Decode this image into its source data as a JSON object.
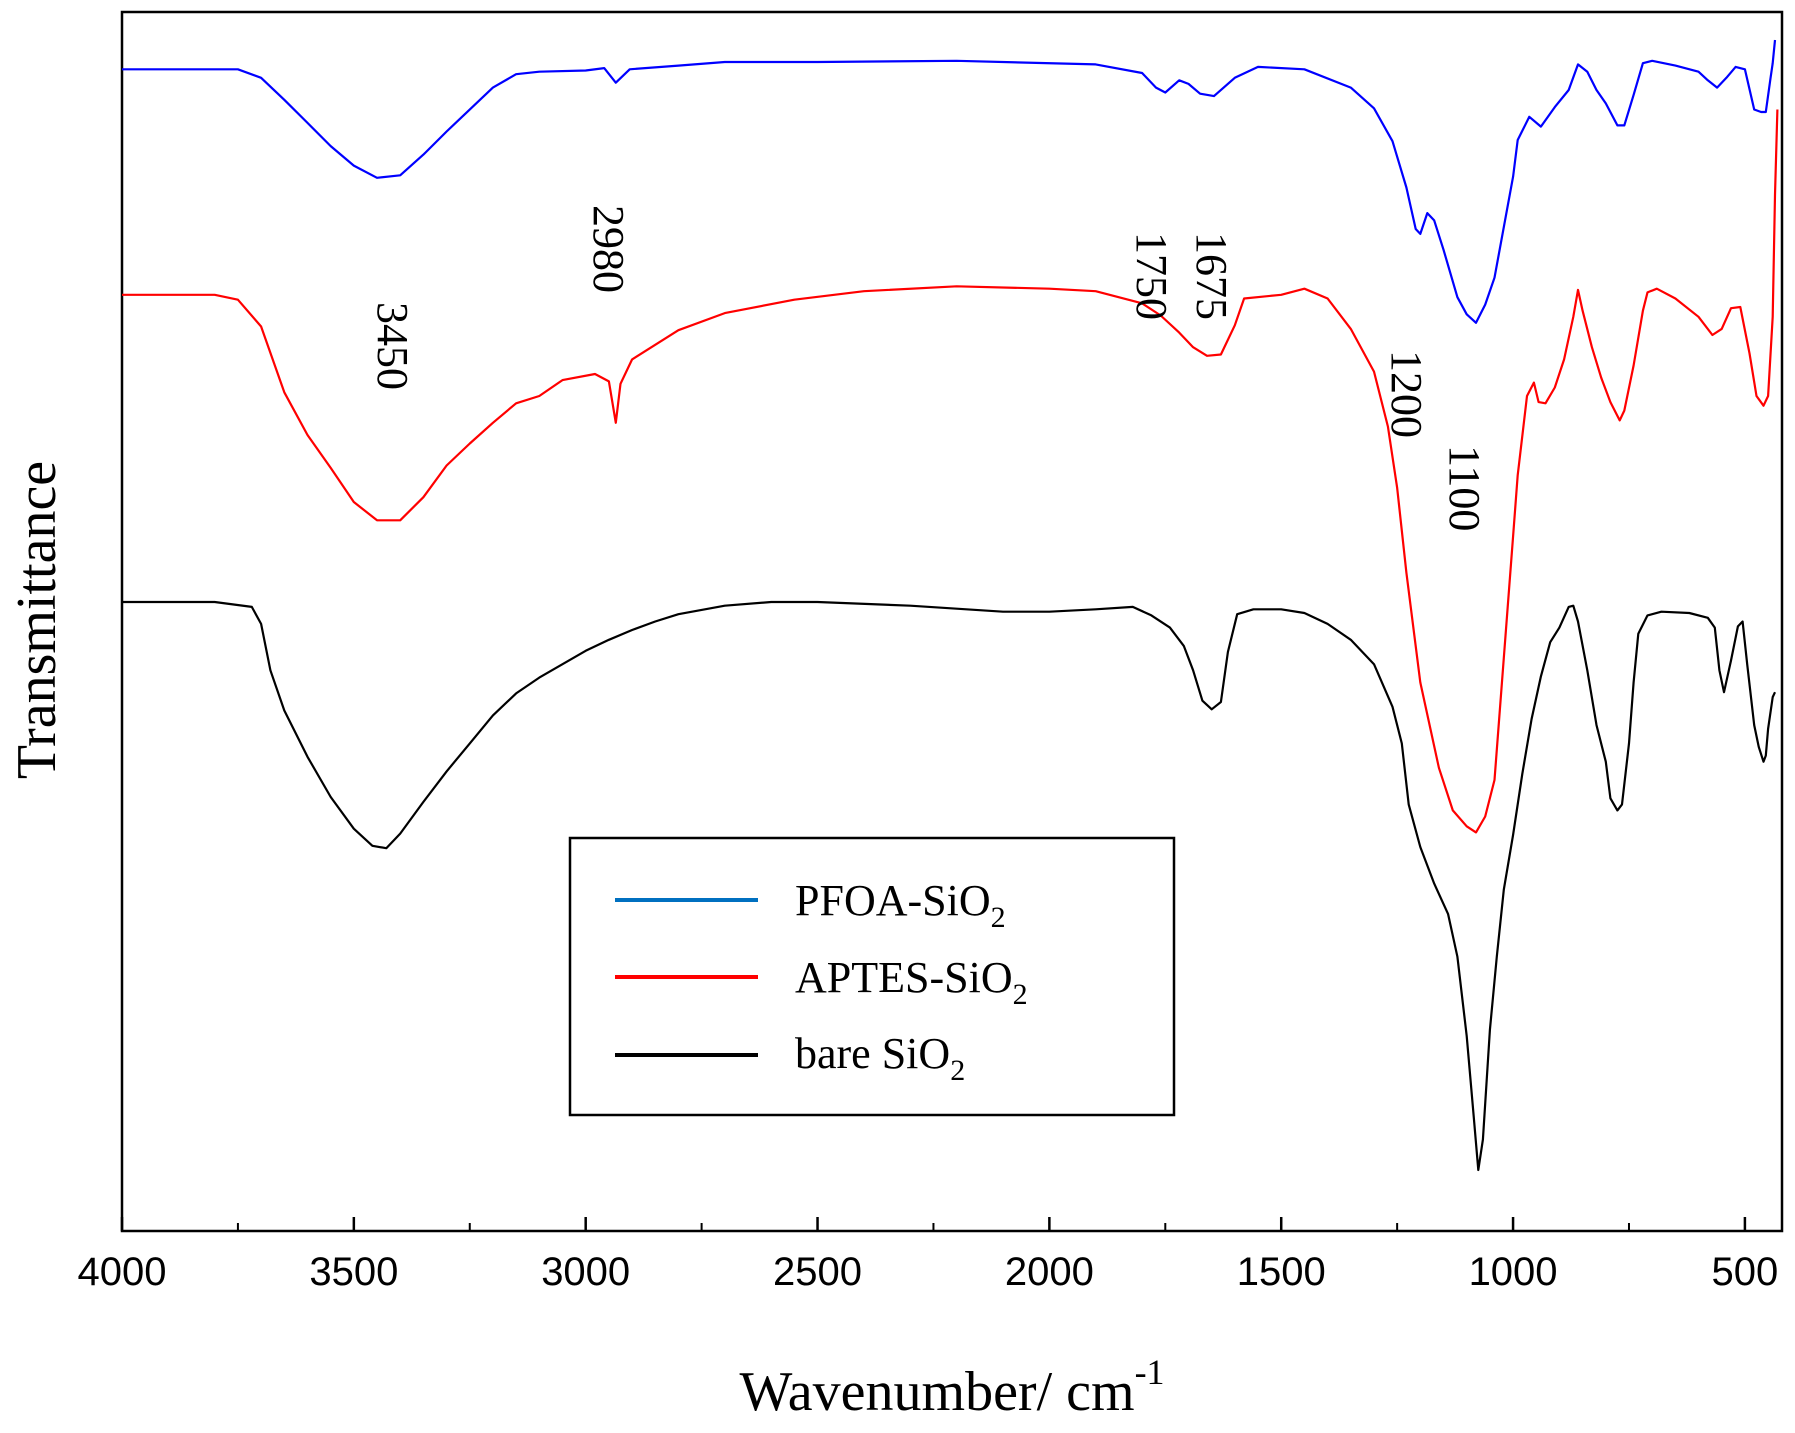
{
  "chart_data": {
    "type": "line",
    "title": "",
    "xlabel": "Wavenumber/ cm",
    "xlabel_sup": "-1",
    "ylabel": "Transmittance",
    "xlim": [
      4000,
      420
    ],
    "x_reversed": true,
    "ylim": [
      0,
      100
    ],
    "grid": false,
    "legend_position": "bottom-center",
    "x_ticks": [
      4000,
      3500,
      3000,
      2500,
      2000,
      1500,
      1000,
      500
    ],
    "x_tick_labels": [
      "4000",
      "3500",
      "3000",
      "2500",
      "2000",
      "1500",
      "1000",
      "500"
    ],
    "series": [
      {
        "name": "PFOA-SiO",
        "name_sub": "2",
        "color": "#0000ff",
        "legend_color": "#0070c0",
        "points": [
          [
            4000,
            95.3
          ],
          [
            3750,
            95.3
          ],
          [
            3700,
            94.6
          ],
          [
            3650,
            92.8
          ],
          [
            3600,
            90.9
          ],
          [
            3550,
            89.0
          ],
          [
            3500,
            87.4
          ],
          [
            3450,
            86.4
          ],
          [
            3400,
            86.6
          ],
          [
            3350,
            88.3
          ],
          [
            3300,
            90.2
          ],
          [
            3200,
            93.8
          ],
          [
            3150,
            94.9
          ],
          [
            3100,
            95.1
          ],
          [
            3000,
            95.2
          ],
          [
            2960,
            95.4
          ],
          [
            2935,
            94.2
          ],
          [
            2905,
            95.3
          ],
          [
            2800,
            95.6
          ],
          [
            2700,
            95.9
          ],
          [
            2500,
            95.9
          ],
          [
            2200,
            96.0
          ],
          [
            1900,
            95.7
          ],
          [
            1800,
            95.0
          ],
          [
            1770,
            93.8
          ],
          [
            1750,
            93.4
          ],
          [
            1720,
            94.4
          ],
          [
            1700,
            94.1
          ],
          [
            1675,
            93.3
          ],
          [
            1645,
            93.1
          ],
          [
            1600,
            94.6
          ],
          [
            1550,
            95.5
          ],
          [
            1450,
            95.3
          ],
          [
            1350,
            93.8
          ],
          [
            1300,
            92.1
          ],
          [
            1260,
            89.4
          ],
          [
            1230,
            85.6
          ],
          [
            1210,
            82.2
          ],
          [
            1200,
            81.8
          ],
          [
            1185,
            83.5
          ],
          [
            1170,
            82.9
          ],
          [
            1150,
            80.5
          ],
          [
            1120,
            76.6
          ],
          [
            1100,
            75.2
          ],
          [
            1080,
            74.5
          ],
          [
            1060,
            76.0
          ],
          [
            1040,
            78.2
          ],
          [
            1000,
            86.5
          ],
          [
            990,
            89.5
          ],
          [
            965,
            91.4
          ],
          [
            940,
            90.6
          ],
          [
            910,
            92.2
          ],
          [
            880,
            93.6
          ],
          [
            860,
            95.7
          ],
          [
            840,
            95.1
          ],
          [
            820,
            93.6
          ],
          [
            800,
            92.5
          ],
          [
            775,
            90.7
          ],
          [
            760,
            90.7
          ],
          [
            740,
            93.2
          ],
          [
            720,
            95.8
          ],
          [
            700,
            96.0
          ],
          [
            650,
            95.6
          ],
          [
            600,
            95.1
          ],
          [
            580,
            94.4
          ],
          [
            560,
            93.8
          ],
          [
            540,
            94.6
          ],
          [
            520,
            95.5
          ],
          [
            500,
            95.3
          ],
          [
            480,
            92.0
          ],
          [
            465,
            91.8
          ],
          [
            455,
            91.8
          ],
          [
            445,
            94.5
          ],
          [
            440,
            95.8
          ],
          [
            435,
            97.7
          ]
        ]
      },
      {
        "name": "APTES-SiO",
        "name_sub": "2",
        "color": "#ff0000",
        "legend_color": "#ff0000",
        "points": [
          [
            4000,
            76.8
          ],
          [
            3800,
            76.8
          ],
          [
            3750,
            76.4
          ],
          [
            3700,
            74.2
          ],
          [
            3650,
            68.8
          ],
          [
            3600,
            65.3
          ],
          [
            3550,
            62.6
          ],
          [
            3500,
            59.8
          ],
          [
            3450,
            58.3
          ],
          [
            3400,
            58.3
          ],
          [
            3350,
            60.2
          ],
          [
            3300,
            62.8
          ],
          [
            3250,
            64.6
          ],
          [
            3200,
            66.3
          ],
          [
            3150,
            67.9
          ],
          [
            3100,
            68.5
          ],
          [
            3050,
            69.8
          ],
          [
            2980,
            70.3
          ],
          [
            2950,
            69.7
          ],
          [
            2935,
            66.3
          ],
          [
            2925,
            69.5
          ],
          [
            2900,
            71.5
          ],
          [
            2800,
            73.9
          ],
          [
            2700,
            75.3
          ],
          [
            2550,
            76.4
          ],
          [
            2400,
            77.1
          ],
          [
            2200,
            77.5
          ],
          [
            2000,
            77.3
          ],
          [
            1900,
            77.1
          ],
          [
            1800,
            76.1
          ],
          [
            1760,
            75.1
          ],
          [
            1720,
            73.7
          ],
          [
            1690,
            72.5
          ],
          [
            1660,
            71.8
          ],
          [
            1630,
            71.9
          ],
          [
            1600,
            74.3
          ],
          [
            1580,
            76.5
          ],
          [
            1500,
            76.8
          ],
          [
            1450,
            77.3
          ],
          [
            1400,
            76.5
          ],
          [
            1350,
            74.0
          ],
          [
            1300,
            70.5
          ],
          [
            1270,
            66.0
          ],
          [
            1250,
            61.0
          ],
          [
            1230,
            54.0
          ],
          [
            1200,
            45.0
          ],
          [
            1160,
            38.0
          ],
          [
            1130,
            34.5
          ],
          [
            1100,
            33.2
          ],
          [
            1080,
            32.7
          ],
          [
            1060,
            34.0
          ],
          [
            1040,
            37.0
          ],
          [
            1020,
            47.0
          ],
          [
            1000,
            57.0
          ],
          [
            990,
            62.0
          ],
          [
            970,
            68.5
          ],
          [
            955,
            69.6
          ],
          [
            945,
            68.0
          ],
          [
            930,
            67.9
          ],
          [
            910,
            69.2
          ],
          [
            890,
            71.5
          ],
          [
            870,
            75.0
          ],
          [
            860,
            77.2
          ],
          [
            850,
            75.5
          ],
          [
            830,
            72.5
          ],
          [
            810,
            70.0
          ],
          [
            790,
            68.0
          ],
          [
            770,
            66.5
          ],
          [
            760,
            67.3
          ],
          [
            740,
            71.0
          ],
          [
            720,
            75.5
          ],
          [
            710,
            77.0
          ],
          [
            690,
            77.3
          ],
          [
            650,
            76.5
          ],
          [
            600,
            75.0
          ],
          [
            570,
            73.5
          ],
          [
            550,
            74.0
          ],
          [
            530,
            75.7
          ],
          [
            510,
            75.8
          ],
          [
            490,
            72.0
          ],
          [
            475,
            68.5
          ],
          [
            460,
            67.7
          ],
          [
            450,
            68.5
          ],
          [
            440,
            75.0
          ],
          [
            435,
            85.0
          ],
          [
            430,
            92.0
          ]
        ]
      },
      {
        "name": "bare SiO",
        "name_sub": "2",
        "color": "#000000",
        "legend_color": "#000000",
        "points": [
          [
            4000,
            51.6
          ],
          [
            3800,
            51.6
          ],
          [
            3720,
            51.2
          ],
          [
            3700,
            49.8
          ],
          [
            3680,
            46.0
          ],
          [
            3650,
            42.7
          ],
          [
            3600,
            38.9
          ],
          [
            3550,
            35.6
          ],
          [
            3500,
            33.0
          ],
          [
            3460,
            31.6
          ],
          [
            3430,
            31.4
          ],
          [
            3400,
            32.6
          ],
          [
            3350,
            35.2
          ],
          [
            3300,
            37.7
          ],
          [
            3250,
            40.0
          ],
          [
            3200,
            42.3
          ],
          [
            3150,
            44.1
          ],
          [
            3100,
            45.4
          ],
          [
            3050,
            46.5
          ],
          [
            3000,
            47.6
          ],
          [
            2950,
            48.5
          ],
          [
            2900,
            49.3
          ],
          [
            2850,
            50.0
          ],
          [
            2800,
            50.6
          ],
          [
            2700,
            51.3
          ],
          [
            2600,
            51.6
          ],
          [
            2500,
            51.6
          ],
          [
            2300,
            51.3
          ],
          [
            2100,
            50.8
          ],
          [
            2000,
            50.8
          ],
          [
            1900,
            51.0
          ],
          [
            1820,
            51.2
          ],
          [
            1780,
            50.5
          ],
          [
            1740,
            49.5
          ],
          [
            1710,
            48.0
          ],
          [
            1690,
            46.0
          ],
          [
            1670,
            43.5
          ],
          [
            1650,
            42.8
          ],
          [
            1630,
            43.4
          ],
          [
            1615,
            47.5
          ],
          [
            1595,
            50.6
          ],
          [
            1560,
            51.0
          ],
          [
            1500,
            51.0
          ],
          [
            1450,
            50.7
          ],
          [
            1400,
            49.8
          ],
          [
            1350,
            48.5
          ],
          [
            1300,
            46.5
          ],
          [
            1260,
            43.0
          ],
          [
            1240,
            40.0
          ],
          [
            1225,
            35.0
          ],
          [
            1200,
            31.5
          ],
          [
            1170,
            28.5
          ],
          [
            1140,
            26.0
          ],
          [
            1120,
            22.5
          ],
          [
            1100,
            16.0
          ],
          [
            1085,
            9.5
          ],
          [
            1075,
            5.0
          ],
          [
            1065,
            7.5
          ],
          [
            1050,
            16.5
          ],
          [
            1035,
            22.5
          ],
          [
            1020,
            28.0
          ],
          [
            1000,
            32.5
          ],
          [
            980,
            37.5
          ],
          [
            960,
            42.0
          ],
          [
            940,
            45.5
          ],
          [
            920,
            48.3
          ],
          [
            900,
            49.5
          ],
          [
            880,
            51.2
          ],
          [
            870,
            51.3
          ],
          [
            860,
            50.0
          ],
          [
            840,
            46.0
          ],
          [
            820,
            41.5
          ],
          [
            800,
            38.5
          ],
          [
            790,
            35.5
          ],
          [
            775,
            34.5
          ],
          [
            765,
            35.0
          ],
          [
            750,
            40.0
          ],
          [
            740,
            45.0
          ],
          [
            730,
            49.0
          ],
          [
            710,
            50.5
          ],
          [
            680,
            50.8
          ],
          [
            620,
            50.7
          ],
          [
            580,
            50.3
          ],
          [
            565,
            49.5
          ],
          [
            555,
            46.0
          ],
          [
            545,
            44.2
          ],
          [
            530,
            46.8
          ],
          [
            515,
            49.6
          ],
          [
            505,
            50.0
          ],
          [
            495,
            46.5
          ],
          [
            480,
            41.5
          ],
          [
            470,
            39.7
          ],
          [
            460,
            38.5
          ],
          [
            455,
            39.0
          ],
          [
            450,
            41.2
          ],
          [
            440,
            43.8
          ],
          [
            435,
            44.2
          ]
        ]
      }
    ],
    "annotations": [
      {
        "text": "3450",
        "x": 3450
      },
      {
        "text": "2980",
        "x": 2980
      },
      {
        "text": "1750",
        "x": 1750
      },
      {
        "text": "1675",
        "x": 1675
      },
      {
        "text": "1200",
        "x": 1200
      },
      {
        "text": "1100",
        "x": 1100
      }
    ]
  }
}
